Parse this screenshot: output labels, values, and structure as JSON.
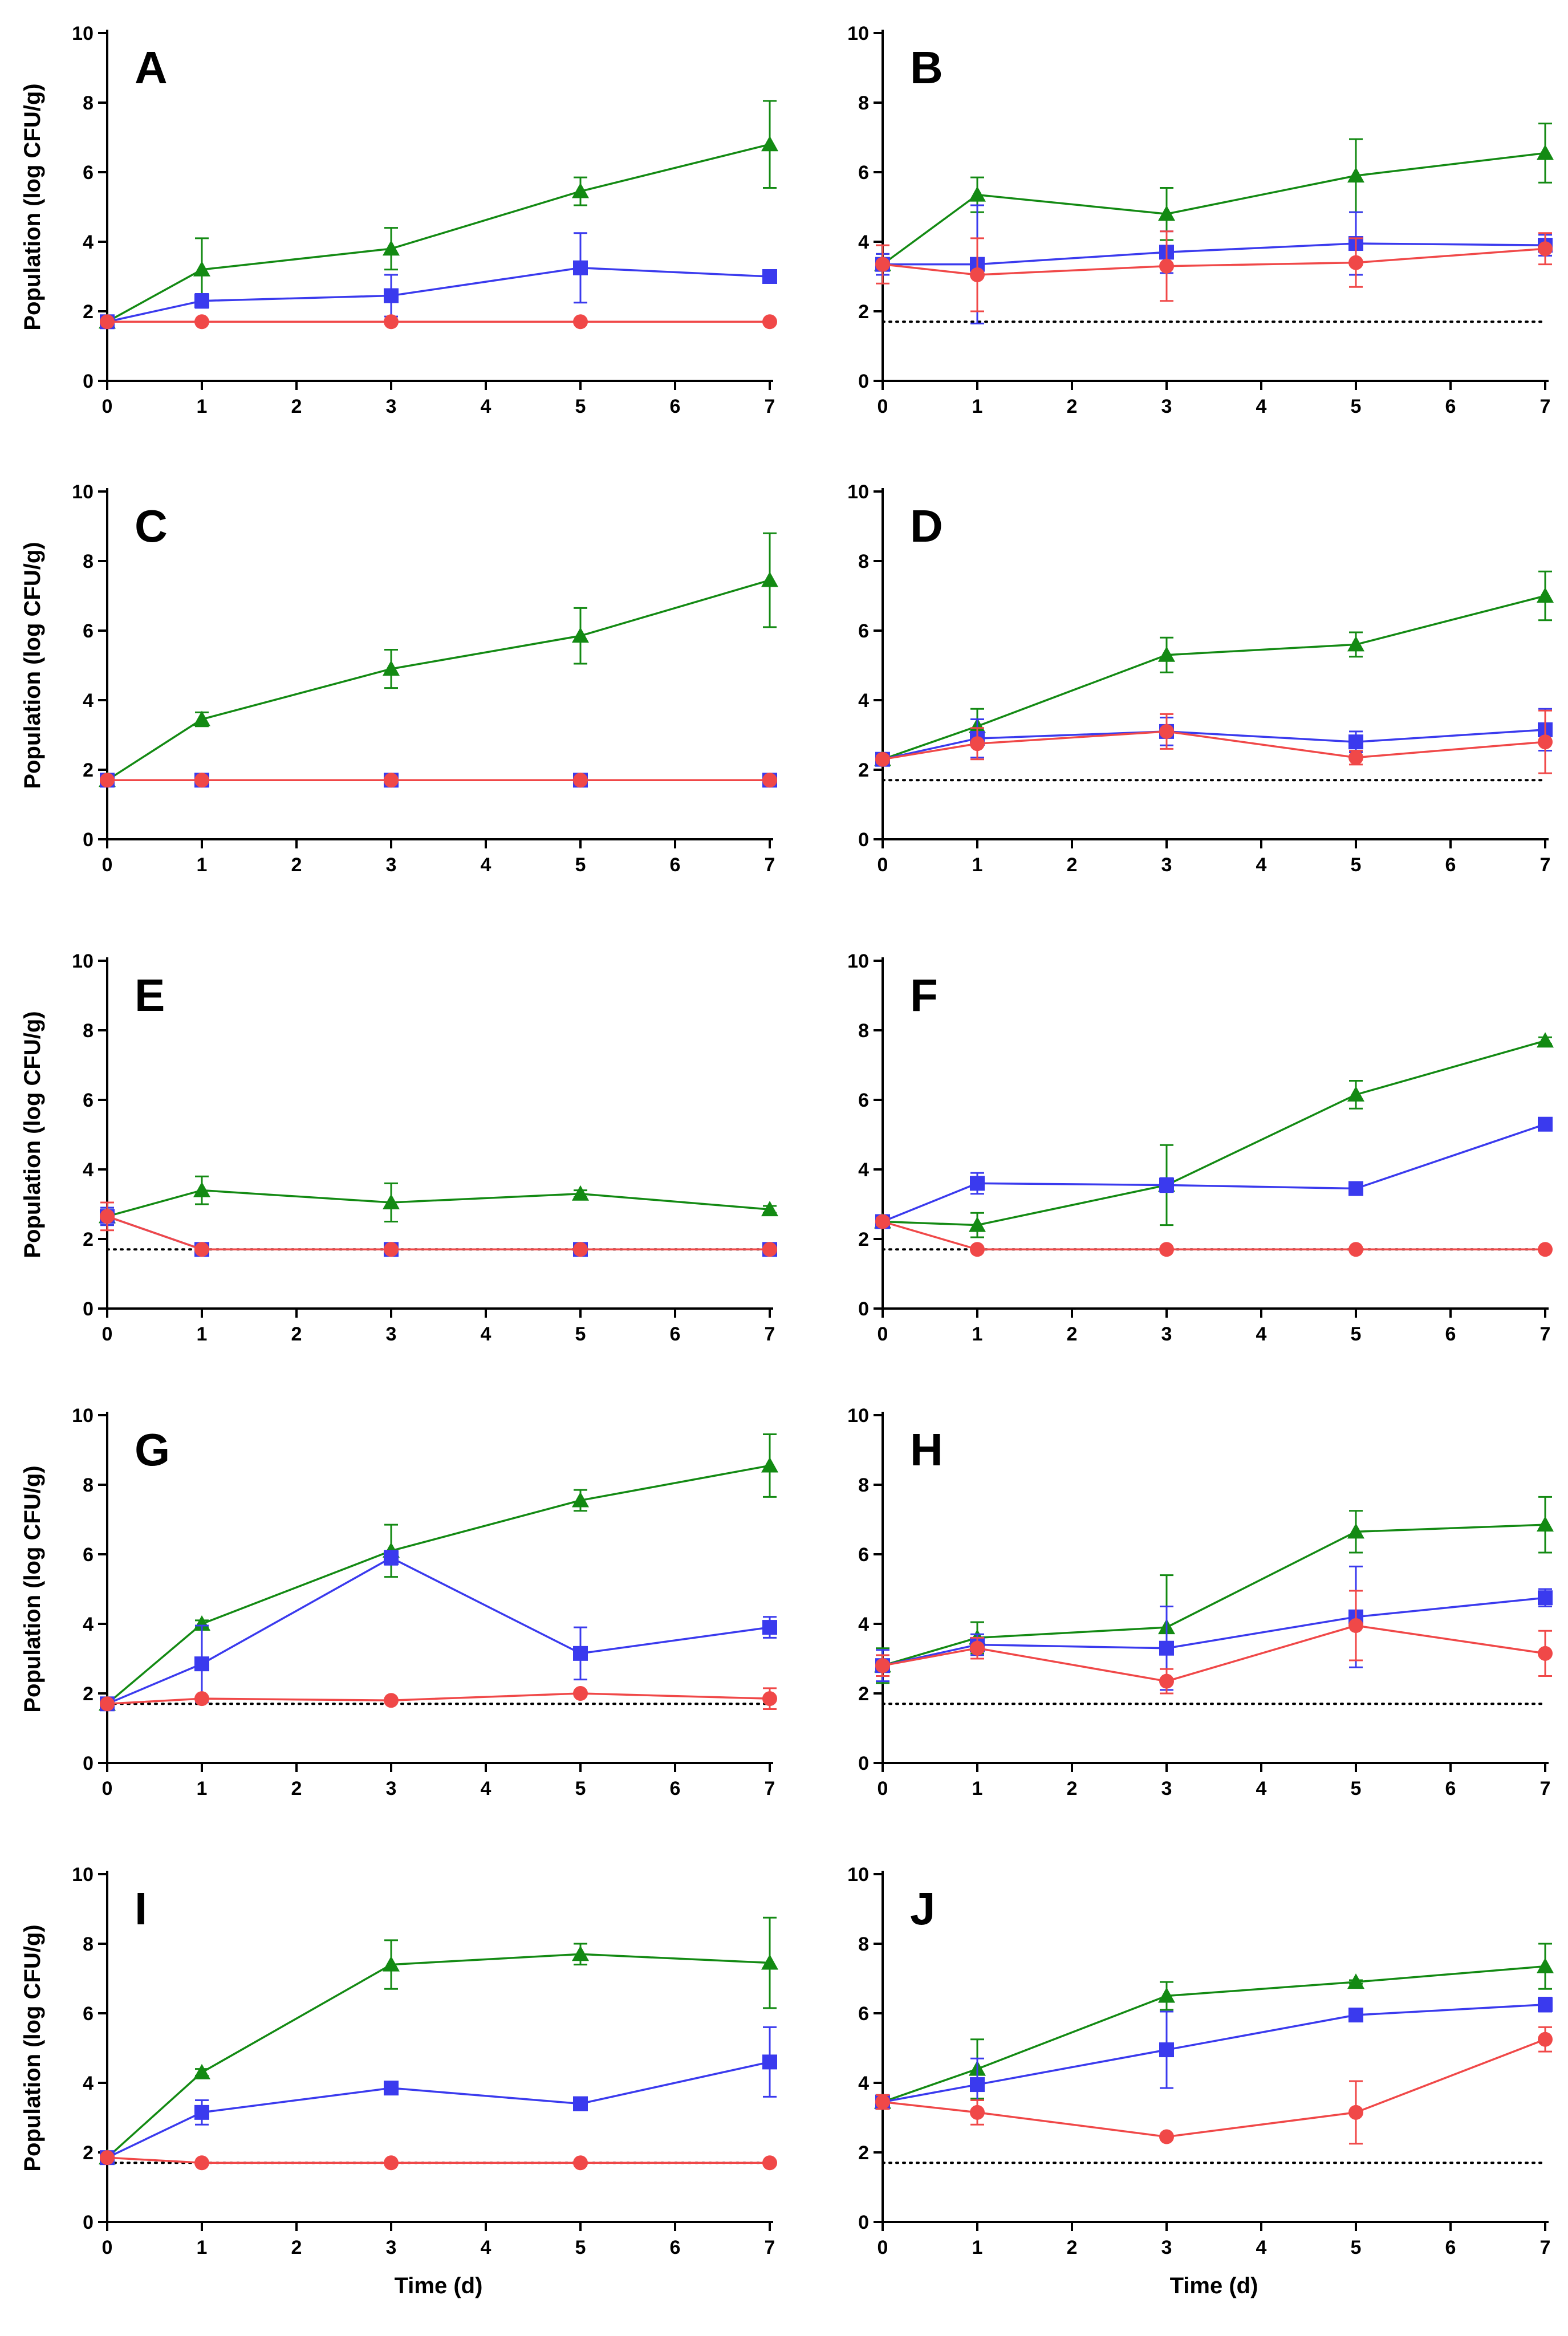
{
  "figure": {
    "ylabel": "Population (log CFU/g)",
    "xlabel": "Time (d)"
  },
  "series_styles": {
    "green": {
      "color": "#138a13",
      "marker": "triangle"
    },
    "blue": {
      "color": "#3a3aee",
      "marker": "square"
    },
    "red": {
      "color": "#f04848",
      "marker": "circle"
    },
    "detection_limit": {
      "color": "#000000",
      "style": "dotted"
    }
  },
  "chart_data": [
    {
      "type": "line",
      "panel": "A",
      "x": [
        0,
        1,
        3,
        5,
        7
      ],
      "xlim": [
        0,
        7
      ],
      "ylim": [
        0,
        10
      ],
      "xticks": [
        "0",
        "1",
        "2",
        "3",
        "4",
        "5",
        "6",
        "7"
      ],
      "yticks": [
        "0",
        "2",
        "4",
        "6",
        "8",
        "10"
      ],
      "detection_limit": null,
      "series": [
        {
          "name": "green",
          "values": [
            1.7,
            3.2,
            3.8,
            5.45,
            6.8
          ],
          "errors": [
            0,
            0.9,
            0.6,
            0.4,
            1.25
          ]
        },
        {
          "name": "blue",
          "values": [
            1.7,
            2.3,
            2.45,
            3.25,
            3.0
          ],
          "errors": [
            0,
            0.2,
            0.6,
            1.0,
            0.1
          ]
        },
        {
          "name": "red",
          "values": [
            1.7,
            1.7,
            1.7,
            1.7,
            1.7
          ],
          "errors": [
            0,
            0,
            0,
            0,
            0
          ]
        }
      ]
    },
    {
      "type": "line",
      "panel": "B",
      "x": [
        0,
        1,
        3,
        5,
        7
      ],
      "xlim": [
        0,
        7
      ],
      "ylim": [
        0,
        10
      ],
      "xticks": [
        "0",
        "1",
        "2",
        "3",
        "4",
        "5",
        "6",
        "7"
      ],
      "yticks": [
        "0",
        "2",
        "4",
        "6",
        "8",
        "10"
      ],
      "detection_limit": 1.7,
      "series": [
        {
          "name": "green",
          "values": [
            3.35,
            5.35,
            4.8,
            5.9,
            6.55
          ],
          "errors": [
            0.3,
            0.5,
            0.75,
            1.05,
            0.85
          ]
        },
        {
          "name": "blue",
          "values": [
            3.35,
            3.35,
            3.7,
            3.95,
            3.9
          ],
          "errors": [
            0.3,
            1.7,
            0.6,
            0.9,
            0.3
          ]
        },
        {
          "name": "red",
          "values": [
            3.35,
            3.05,
            3.3,
            3.4,
            3.8
          ],
          "errors": [
            0.55,
            1.05,
            1.0,
            0.7,
            0.45
          ]
        }
      ]
    },
    {
      "type": "line",
      "panel": "C",
      "x": [
        0,
        1,
        3,
        5,
        7
      ],
      "xlim": [
        0,
        7
      ],
      "ylim": [
        0,
        10
      ],
      "xticks": [
        "0",
        "1",
        "2",
        "3",
        "4",
        "5",
        "6",
        "7"
      ],
      "yticks": [
        "0",
        "2",
        "4",
        "6",
        "8",
        "10"
      ],
      "detection_limit": null,
      "series": [
        {
          "name": "green",
          "values": [
            1.7,
            3.45,
            4.9,
            5.85,
            7.45
          ],
          "errors": [
            0,
            0.2,
            0.55,
            0.8,
            1.35
          ]
        },
        {
          "name": "blue",
          "values": [
            1.7,
            1.7,
            1.7,
            1.7,
            1.7
          ],
          "errors": [
            0,
            0,
            0,
            0,
            0
          ]
        },
        {
          "name": "red",
          "values": [
            1.7,
            1.7,
            1.7,
            1.7,
            1.7
          ],
          "errors": [
            0,
            0,
            0,
            0,
            0
          ]
        }
      ]
    },
    {
      "type": "line",
      "panel": "D",
      "x": [
        0,
        1,
        3,
        5,
        7
      ],
      "xlim": [
        0,
        7
      ],
      "ylim": [
        0,
        10
      ],
      "xticks": [
        "0",
        "1",
        "2",
        "3",
        "4",
        "5",
        "6",
        "7"
      ],
      "yticks": [
        "0",
        "2",
        "4",
        "6",
        "8",
        "10"
      ],
      "detection_limit": 1.7,
      "series": [
        {
          "name": "green",
          "values": [
            2.3,
            3.25,
            5.3,
            5.6,
            7.0
          ],
          "errors": [
            0.1,
            0.5,
            0.5,
            0.35,
            0.7
          ]
        },
        {
          "name": "blue",
          "values": [
            2.3,
            2.9,
            3.1,
            2.8,
            3.15
          ],
          "errors": [
            0.1,
            0.55,
            0.4,
            0.3,
            0.6
          ]
        },
        {
          "name": "red",
          "values": [
            2.3,
            2.75,
            3.1,
            2.35,
            2.8
          ],
          "errors": [
            0.1,
            0.45,
            0.5,
            0.2,
            0.9
          ]
        }
      ]
    },
    {
      "type": "line",
      "panel": "E",
      "x": [
        0,
        1,
        3,
        5,
        7
      ],
      "xlim": [
        0,
        7
      ],
      "ylim": [
        0,
        10
      ],
      "xticks": [
        "0",
        "1",
        "2",
        "3",
        "4",
        "5",
        "6",
        "7"
      ],
      "yticks": [
        "0",
        "2",
        "4",
        "6",
        "8",
        "10"
      ],
      "detection_limit": 1.7,
      "series": [
        {
          "name": "green",
          "values": [
            2.65,
            3.4,
            3.05,
            3.3,
            2.85
          ],
          "errors": [
            0.25,
            0.4,
            0.55,
            0.1,
            0.1
          ]
        },
        {
          "name": "blue",
          "values": [
            2.65,
            1.7,
            1.7,
            1.7,
            1.7
          ],
          "errors": [
            0.25,
            0,
            0,
            0,
            0
          ]
        },
        {
          "name": "red",
          "values": [
            2.65,
            1.7,
            1.7,
            1.7,
            1.7
          ],
          "errors": [
            0.4,
            0,
            0,
            0,
            0
          ]
        }
      ]
    },
    {
      "type": "line",
      "panel": "F",
      "x": [
        0,
        1,
        3,
        5,
        7
      ],
      "xlim": [
        0,
        7
      ],
      "ylim": [
        0,
        10
      ],
      "xticks": [
        "0",
        "1",
        "2",
        "3",
        "4",
        "5",
        "6",
        "7"
      ],
      "yticks": [
        "0",
        "2",
        "4",
        "6",
        "8",
        "10"
      ],
      "detection_limit": 1.7,
      "series": [
        {
          "name": "green",
          "values": [
            2.5,
            2.4,
            3.55,
            6.15,
            7.7
          ],
          "errors": [
            0.1,
            0.35,
            1.15,
            0.4,
            0.1
          ]
        },
        {
          "name": "blue",
          "values": [
            2.5,
            3.6,
            3.55,
            3.45,
            5.3
          ],
          "errors": [
            0.1,
            0.3,
            0.2,
            0.1,
            0.1
          ]
        },
        {
          "name": "red",
          "values": [
            2.5,
            1.7,
            1.7,
            1.7,
            1.7
          ],
          "errors": [
            0.1,
            0,
            0,
            0,
            0
          ]
        }
      ]
    },
    {
      "type": "line",
      "panel": "G",
      "x": [
        0,
        1,
        3,
        5,
        7
      ],
      "xlim": [
        0,
        7
      ],
      "ylim": [
        0,
        10
      ],
      "xticks": [
        "0",
        "1",
        "2",
        "3",
        "4",
        "5",
        "6",
        "7"
      ],
      "yticks": [
        "0",
        "2",
        "4",
        "6",
        "8",
        "10"
      ],
      "detection_limit": 1.7,
      "series": [
        {
          "name": "green",
          "values": [
            1.7,
            4.0,
            6.1,
            7.55,
            8.55
          ],
          "errors": [
            0,
            0.1,
            0.75,
            0.3,
            0.9
          ]
        },
        {
          "name": "blue",
          "values": [
            1.7,
            2.85,
            5.9,
            3.15,
            3.9
          ],
          "errors": [
            0,
            1.1,
            0.2,
            0.75,
            0.3
          ]
        },
        {
          "name": "red",
          "values": [
            1.7,
            1.85,
            1.8,
            2.0,
            1.85
          ],
          "errors": [
            0,
            0.05,
            0.05,
            0.05,
            0.3
          ]
        }
      ]
    },
    {
      "type": "line",
      "panel": "H",
      "x": [
        0,
        1,
        3,
        5,
        7
      ],
      "xlim": [
        0,
        7
      ],
      "ylim": [
        0,
        10
      ],
      "xticks": [
        "0",
        "1",
        "2",
        "3",
        "4",
        "5",
        "6",
        "7"
      ],
      "yticks": [
        "0",
        "2",
        "4",
        "6",
        "8",
        "10"
      ],
      "detection_limit": 1.7,
      "series": [
        {
          "name": "green",
          "values": [
            2.8,
            3.6,
            3.9,
            6.65,
            6.85
          ],
          "errors": [
            0.5,
            0.45,
            1.5,
            0.6,
            0.8
          ]
        },
        {
          "name": "blue",
          "values": [
            2.8,
            3.4,
            3.3,
            4.2,
            4.75
          ],
          "errors": [
            0.45,
            0.3,
            1.2,
            1.45,
            0.25
          ]
        },
        {
          "name": "red",
          "values": [
            2.8,
            3.3,
            2.35,
            3.95,
            3.15
          ],
          "errors": [
            0.3,
            0.3,
            0.35,
            1.0,
            0.65
          ]
        }
      ]
    },
    {
      "type": "line",
      "panel": "I",
      "x": [
        0,
        1,
        3,
        5,
        7
      ],
      "xlim": [
        0,
        7
      ],
      "ylim": [
        0,
        10
      ],
      "xticks": [
        "0",
        "1",
        "2",
        "3",
        "4",
        "5",
        "6",
        "7"
      ],
      "yticks": [
        "0",
        "2",
        "4",
        "6",
        "8",
        "10"
      ],
      "detection_limit": 1.7,
      "series": [
        {
          "name": "green",
          "values": [
            1.85,
            4.3,
            7.4,
            7.7,
            7.45
          ],
          "errors": [
            0.05,
            0.1,
            0.7,
            0.3,
            1.3
          ]
        },
        {
          "name": "blue",
          "values": [
            1.85,
            3.15,
            3.85,
            3.4,
            4.6
          ],
          "errors": [
            0.05,
            0.35,
            0.1,
            0.1,
            1.0
          ]
        },
        {
          "name": "red",
          "values": [
            1.85,
            1.7,
            1.7,
            1.7,
            1.7
          ],
          "errors": [
            0.05,
            0,
            0,
            0,
            0
          ]
        }
      ]
    },
    {
      "type": "line",
      "panel": "J",
      "x": [
        0,
        1,
        3,
        5,
        7
      ],
      "xlim": [
        0,
        7
      ],
      "ylim": [
        0,
        10
      ],
      "xticks": [
        "0",
        "1",
        "2",
        "3",
        "4",
        "5",
        "6",
        "7"
      ],
      "yticks": [
        "0",
        "2",
        "4",
        "6",
        "8",
        "10"
      ],
      "detection_limit": 1.7,
      "series": [
        {
          "name": "green",
          "values": [
            3.45,
            4.4,
            6.5,
            6.9,
            7.35
          ],
          "errors": [
            0.2,
            0.85,
            0.4,
            0.05,
            0.65
          ]
        },
        {
          "name": "blue",
          "values": [
            3.45,
            3.95,
            4.95,
            5.95,
            6.25
          ],
          "errors": [
            0.2,
            0.75,
            1.1,
            0.1,
            0.2
          ]
        },
        {
          "name": "red",
          "values": [
            3.45,
            3.15,
            2.45,
            3.15,
            5.25
          ],
          "errors": [
            0.2,
            0.35,
            0.05,
            0.9,
            0.35
          ]
        }
      ]
    }
  ]
}
